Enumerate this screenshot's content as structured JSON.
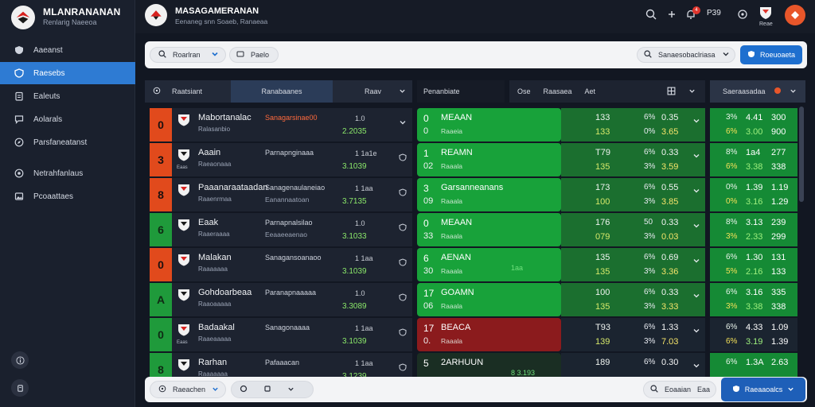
{
  "sidebar": {
    "brand_title": "MLANRANANAN",
    "brand_subtitle": "Renlarig Naeeoa",
    "items": [
      {
        "label": "Aaeanst",
        "icon": "shield-icon",
        "active": false
      },
      {
        "label": "Raesebs",
        "icon": "shield-icon",
        "active": true
      },
      {
        "label": "Ealeuts",
        "icon": "clipboard-icon",
        "active": false
      },
      {
        "label": "Aolarals",
        "icon": "chat-icon",
        "active": false
      },
      {
        "label": "Parsfaneatanst",
        "icon": "compass-icon",
        "active": false
      },
      {
        "label": "Netrahfanlaus",
        "icon": "target-icon",
        "active": false
      },
      {
        "label": "Pcoaattaes",
        "icon": "image-icon",
        "active": false
      }
    ]
  },
  "topbar": {
    "title": "MASAGAMERANAN",
    "subtitle": "Eenaneg snn Soaeb, Ranaeaa",
    "notif_count": "4",
    "count_label": "P39",
    "flag_label": "Reae"
  },
  "search": {
    "field1": "Roarlran",
    "field2": "Paelo",
    "field3": "Sanaesobaclriasa",
    "button": "Roeuoaeta"
  },
  "table_header": {
    "col1": "Raatsiant",
    "col2": "Ranabaanes",
    "col3": "Raav",
    "col4": "Penanbiate",
    "col5": "Ose",
    "col6": "Raasaea",
    "col7": "Aet",
    "col8": "Saeraasadaa"
  },
  "rows": [
    {
      "rank": "0",
      "rank_color": "red",
      "crest": "",
      "name": "Mabortanalac",
      "sub": "Ralasanbio",
      "mid": "Sanagarsinae00",
      "mid_color": "#ff6a3d",
      "mid_sub": "",
      "v1": "1.0",
      "v2": "2.2035",
      "m1": "0",
      "mname": "MEAAN",
      "m2": "0",
      "msub": "Raaeia",
      "mstyle": "g",
      "mtag": "",
      "s1": "133",
      "s2": "133",
      "s3": "6%",
      "s4": "0%",
      "s5": "0.35",
      "s6": "3.65",
      "sdark": false,
      "r1": "3%",
      "r2": "6%",
      "r3": "4.41",
      "r4": "3.00",
      "r5": "300",
      "r6": "900",
      "rdark": false
    },
    {
      "rank": "3",
      "rank_color": "red",
      "crest": "Eaas",
      "name": "Aaain",
      "sub": "Raeaonaaa",
      "mid": "Parnapnginaaa",
      "mid_color": "#cfd4de",
      "mid_sub": "",
      "v1": "1 1a1e",
      "v2": "3.1039",
      "m1": "1",
      "mname": "REAMN",
      "m2": "02",
      "msub": "Raaala",
      "mstyle": "g",
      "mtag": "",
      "s1": "T79",
      "s2": "135",
      "s3": "6%",
      "s4": "3%",
      "s5": "0.33",
      "s6": "3.59",
      "sdark": false,
      "r1": "8%",
      "r2": "6%",
      "r3": "1a4",
      "r4": "3.38",
      "r5": "277",
      "r6": "338",
      "rdark": false
    },
    {
      "rank": "8",
      "rank_color": "red",
      "crest": "",
      "name": "Paaanaraataadan",
      "sub": "Raaenrmaa",
      "mid": "Sanagenaulaneiao",
      "mid_color": "#cfd4de",
      "mid_sub": "Eanannaatoan",
      "v1": "1 1aa",
      "v2": "3.7135",
      "m1": "3",
      "mname": "Garsanneanans",
      "m2": "09",
      "msub": "Raaala",
      "mstyle": "g",
      "mtag": "",
      "s1": "173",
      "s2": "100",
      "s3": "6%",
      "s4": "3%",
      "s5": "0.55",
      "s6": "3.85",
      "sdark": false,
      "r1": "0%",
      "r2": "0%",
      "r3": "1.39",
      "r4": "3.16",
      "r5": "1.19",
      "r6": "1.29",
      "rdark": false
    },
    {
      "rank": "6",
      "rank_color": "green",
      "crest": "",
      "name": "Eaak",
      "sub": "Raaeraaaa",
      "mid": "Parnapnalsilao",
      "mid_color": "#cfd4de",
      "mid_sub": "Eeaaeeaenao",
      "v1": "1.0",
      "v2": "3.1033",
      "m1": "0",
      "mname": "MEAAN",
      "m2": "33",
      "msub": "Raaala",
      "mstyle": "g",
      "mtag": "",
      "s1": "176",
      "s2": "079",
      "s3": "50",
      "s4": "3%",
      "s5": "0.33",
      "s6": "0.03",
      "sdark": false,
      "r1": "8%",
      "r2": "3%",
      "r3": "3.13",
      "r4": "2.33",
      "r5": "239",
      "r6": "299",
      "rdark": false
    },
    {
      "rank": "0",
      "rank_color": "red",
      "crest": "",
      "name": "Malakan",
      "sub": "Raaaaaaa",
      "mid": "Sanagansoanaoo",
      "mid_color": "#cfd4de",
      "mid_sub": "",
      "v1": "1 1aa",
      "v2": "3.1039",
      "m1": "6",
      "mname": "AENAN",
      "m2": "30",
      "msub": "Raaala",
      "mstyle": "g",
      "mtag": "1aa",
      "s1": "135",
      "s2": "135",
      "s3": "6%",
      "s4": "3%",
      "s5": "0.69",
      "s6": "3.36",
      "sdark": false,
      "r1": "6%",
      "r2": "5%",
      "r3": "1.30",
      "r4": "2.16",
      "r5": "131",
      "r6": "133",
      "rdark": false
    },
    {
      "rank": "A",
      "rank_color": "green",
      "crest": "",
      "name": "Gohdoarbeaa",
      "sub": "Raaoaaaaa",
      "mid": "Paranapnaaaaa",
      "mid_color": "#cfd4de",
      "mid_sub": "",
      "v1": "1.0",
      "v2": "3.3089",
      "m1": "17",
      "mname": "GOAMN",
      "m2": "06",
      "msub": "Raaala",
      "mstyle": "g",
      "mtag": "",
      "s1": "100",
      "s2": "135",
      "s3": "6%",
      "s4": "3%",
      "s5": "0.33",
      "s6": "3.33",
      "sdark": false,
      "r1": "6%",
      "r2": "3%",
      "r3": "3.16",
      "r4": "3.38",
      "r5": "335",
      "r6": "338",
      "rdark": false
    },
    {
      "rank": "0",
      "rank_color": "green",
      "crest": "Eaas",
      "name": "Badaakal",
      "sub": "Raaeaaaaa",
      "mid": "Sanagonaaaa",
      "mid_color": "#cfd4de",
      "mid_sub": "",
      "v1": "1 1aa",
      "v2": "3.1039",
      "m1": "17",
      "mname": "BEACA",
      "m2": "0.",
      "msub": "Raaala",
      "mstyle": "r",
      "mtag": "",
      "s1": "T93",
      "s2": "139",
      "s3": "6%",
      "s4": "3%",
      "s5": "1.33",
      "s6": "7.03",
      "sdark": true,
      "r1": "6%",
      "r2": "6%",
      "r3": "4.33",
      "r4": "3.19",
      "r5": "1.09",
      "r6": "1.39",
      "rdark": true
    },
    {
      "rank": "8",
      "rank_color": "green",
      "crest": "",
      "name": "Rarhan",
      "sub": "Raaaaaaa",
      "mid": "Pafaaacan",
      "mid_color": "#cfd4de",
      "mid_sub": "",
      "v1": "1 1aa",
      "v2": "3.1239",
      "m1": "5",
      "mname": "2ARHUUN",
      "m2": "",
      "msub": "",
      "mstyle": "dg",
      "mtag": "8 3.193",
      "s1": "189",
      "s2": "",
      "s3": "6%",
      "s4": "",
      "s5": "0.30",
      "s6": "",
      "sdark": true,
      "r1": "6%",
      "r2": "",
      "r3": "1.3A",
      "r4": "",
      "r5": "2.63",
      "r6": "",
      "rdark": false
    }
  ],
  "bottombar": {
    "pill1": "Raeachen",
    "pill3": "Eoaaian",
    "pill3b": "Eaa",
    "button": "Raeaaoalcs"
  },
  "colors": {
    "accent": "#2e7bd3",
    "rank_red": "#e14a1c",
    "rank_green": "#1f9a3b",
    "match_green": "#18a23a",
    "match_red": "#8b1b1d"
  }
}
